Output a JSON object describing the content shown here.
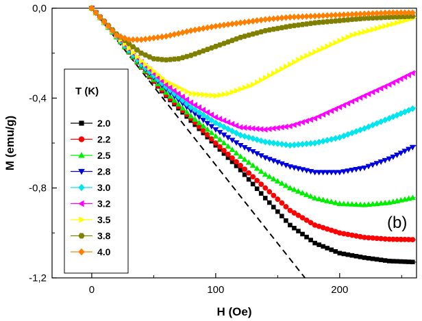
{
  "chart_data": {
    "type": "scatter",
    "title": "",
    "panel_label": "(b)",
    "xlabel": "H (Oe)",
    "ylabel": "M (emu/g)",
    "xlim": [
      -32,
      262
    ],
    "ylim": [
      -1.2,
      0.0
    ],
    "x_ticks": [
      0,
      100,
      200
    ],
    "x_tick_labels": [
      "0",
      "100",
      "200"
    ],
    "y_ticks": [
      0.0,
      -0.4,
      -0.8,
      -1.2
    ],
    "y_tick_labels": [
      "0,0",
      "-0,4",
      "-0,8",
      "-1,2"
    ],
    "legend_title": "T (K)",
    "legend_position": "left",
    "reference_line": {
      "style": "dashed",
      "color": "#000000",
      "x": [
        0,
        172
      ],
      "y": [
        0,
        -1.2
      ]
    },
    "series": [
      {
        "name": "2.0",
        "color": "#000000",
        "marker": "square",
        "x": [
          0,
          20,
          40,
          60,
          80,
          100,
          120,
          140,
          160,
          180,
          200,
          220,
          240,
          262
        ],
        "y": [
          0,
          -0.128,
          -0.263,
          -0.39,
          -0.5,
          -0.61,
          -0.72,
          -0.845,
          -0.965,
          -1.045,
          -1.09,
          -1.11,
          -1.125,
          -1.13
        ]
      },
      {
        "name": "2.2",
        "color": "#ff0000",
        "marker": "circle",
        "x": [
          0,
          20,
          40,
          60,
          80,
          100,
          120,
          140,
          160,
          180,
          200,
          220,
          240,
          262
        ],
        "y": [
          0,
          -0.128,
          -0.262,
          -0.385,
          -0.49,
          -0.6,
          -0.7,
          -0.8,
          -0.9,
          -0.965,
          -1.0,
          -1.02,
          -1.028,
          -1.03
        ]
      },
      {
        "name": "2.5",
        "color": "#00ee00",
        "marker": "triangle-up",
        "x": [
          0,
          20,
          40,
          60,
          80,
          100,
          120,
          140,
          160,
          180,
          200,
          220,
          240,
          262
        ],
        "y": [
          0,
          -0.128,
          -0.26,
          -0.375,
          -0.48,
          -0.57,
          -0.66,
          -0.74,
          -0.8,
          -0.845,
          -0.87,
          -0.875,
          -0.865,
          -0.84
        ]
      },
      {
        "name": "2.8",
        "color": "#0000dd",
        "marker": "triangle-down",
        "x": [
          0,
          20,
          40,
          60,
          80,
          100,
          120,
          140,
          160,
          180,
          200,
          220,
          240,
          262
        ],
        "y": [
          0,
          -0.126,
          -0.255,
          -0.36,
          -0.455,
          -0.54,
          -0.61,
          -0.665,
          -0.705,
          -0.73,
          -0.73,
          -0.71,
          -0.67,
          -0.61
        ]
      },
      {
        "name": "3.0",
        "color": "#00e5ee",
        "marker": "diamond",
        "x": [
          0,
          20,
          40,
          60,
          80,
          100,
          120,
          140,
          160,
          180,
          200,
          220,
          240,
          262
        ],
        "y": [
          0,
          -0.125,
          -0.25,
          -0.35,
          -0.44,
          -0.51,
          -0.565,
          -0.595,
          -0.61,
          -0.6,
          -0.575,
          -0.535,
          -0.49,
          -0.44
        ]
      },
      {
        "name": "3.2",
        "color": "#ff00ff",
        "marker": "triangle-left",
        "x": [
          0,
          20,
          40,
          60,
          80,
          100,
          120,
          140,
          160,
          180,
          200,
          220,
          240,
          262
        ],
        "y": [
          0,
          -0.123,
          -0.24,
          -0.34,
          -0.42,
          -0.485,
          -0.53,
          -0.54,
          -0.525,
          -0.49,
          -0.44,
          -0.39,
          -0.34,
          -0.28
        ]
      },
      {
        "name": "3.5",
        "color": "#ffff00",
        "marker": "triangle-right",
        "x": [
          0,
          20,
          40,
          60,
          80,
          100,
          110,
          130,
          150,
          170,
          190,
          210,
          230,
          262
        ],
        "y": [
          0,
          -0.12,
          -0.235,
          -0.325,
          -0.38,
          -0.39,
          -0.38,
          -0.34,
          -0.28,
          -0.22,
          -0.17,
          -0.12,
          -0.09,
          -0.04
        ]
      },
      {
        "name": "3.8",
        "color": "#808000",
        "marker": "hexagon",
        "x": [
          0,
          20,
          40,
          50,
          60,
          70,
          80,
          100,
          120,
          140,
          160,
          180,
          200,
          220,
          240,
          262
        ],
        "y": [
          0,
          -0.115,
          -0.2,
          -0.225,
          -0.23,
          -0.225,
          -0.21,
          -0.17,
          -0.13,
          -0.1,
          -0.08,
          -0.065,
          -0.055,
          -0.045,
          -0.04,
          -0.035
        ]
      },
      {
        "name": "4.0",
        "color": "#ff8000",
        "marker": "diamond",
        "x": [
          0,
          10,
          20,
          30,
          40,
          60,
          80,
          100,
          120,
          140,
          160,
          180,
          200,
          220,
          240,
          262
        ],
        "y": [
          0,
          -0.06,
          -0.12,
          -0.14,
          -0.14,
          -0.125,
          -0.1,
          -0.08,
          -0.065,
          -0.05,
          -0.04,
          -0.035,
          -0.03,
          -0.025,
          -0.02,
          -0.02
        ]
      }
    ]
  }
}
